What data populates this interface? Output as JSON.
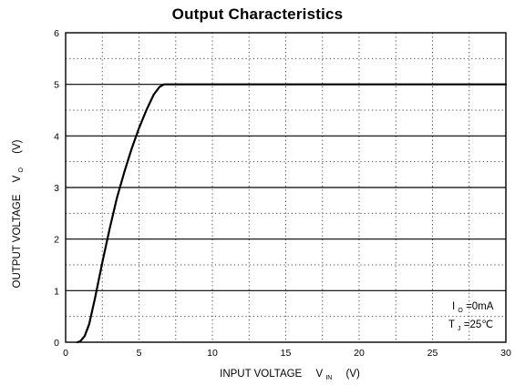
{
  "chart_data": {
    "type": "line",
    "title": "Output  Characteristics",
    "xlabel": "INPUT VOLTAGE",
    "xlabel_symbol": "V",
    "xlabel_subscript": "IN",
    "xlabel_unit": "(V)",
    "ylabel": "OUTPUT VOLTAGE",
    "ylabel_symbol": "V",
    "ylabel_subscript": "O",
    "ylabel_unit": "(V)",
    "xlim": [
      0,
      30
    ],
    "ylim": [
      0,
      6
    ],
    "x_ticks": [
      "0",
      "5",
      "10",
      "15",
      "20",
      "25",
      "30"
    ],
    "y_ticks": [
      "0",
      "1",
      "2",
      "3",
      "4",
      "5",
      "6"
    ],
    "grid": true,
    "annotations": [
      {
        "symbol": "I",
        "subscript": "O",
        "text": "=0mA"
      },
      {
        "symbol": "T",
        "subscript": "J",
        "text": "=25℃"
      }
    ],
    "series": [
      {
        "x": [
          0.8,
          1.0,
          1.3,
          1.6,
          2.0,
          2.5,
          3.0,
          3.5,
          4.0,
          4.5,
          5.0,
          5.5,
          6.0,
          6.4,
          6.7,
          6.9,
          7.0,
          8.0,
          10.0,
          15.0,
          20.0,
          25.0,
          30.0
        ],
        "y": [
          0.0,
          0.02,
          0.12,
          0.35,
          0.85,
          1.55,
          2.2,
          2.8,
          3.3,
          3.75,
          4.15,
          4.5,
          4.8,
          4.95,
          5.0,
          5.0,
          5.0,
          5.0,
          5.0,
          5.0,
          5.0,
          5.0,
          5.0
        ]
      }
    ]
  }
}
